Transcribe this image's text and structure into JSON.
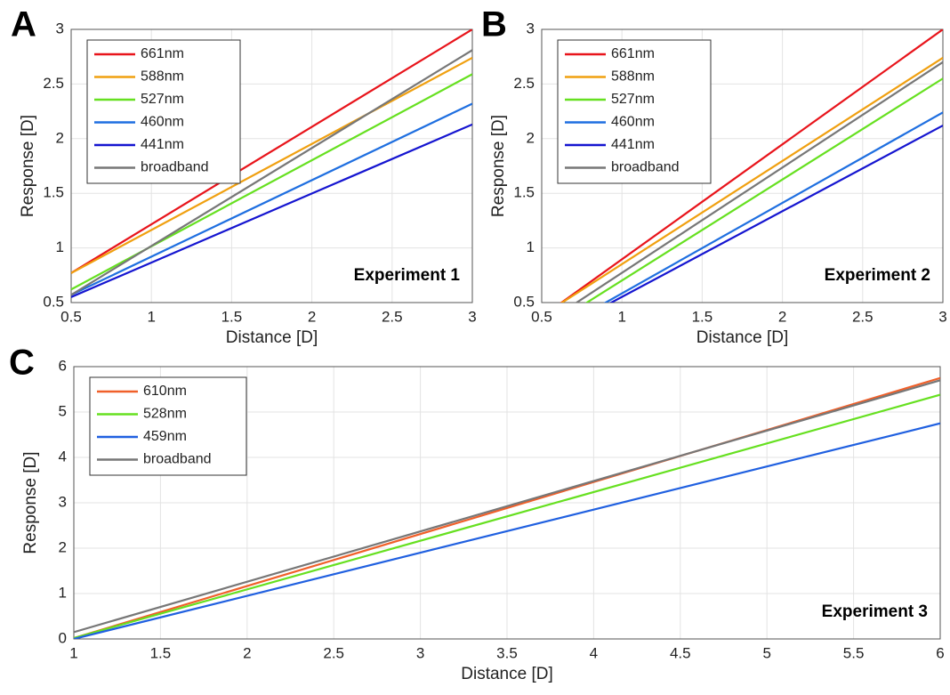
{
  "chart_data": [
    {
      "type": "line",
      "label": "A",
      "annotation": "Experiment 1",
      "x_label": "Distance [D]",
      "y_label": "Response [D]",
      "x": [
        0.5,
        3
      ],
      "xlim": [
        0.5,
        3
      ],
      "ylim": [
        0.5,
        3
      ],
      "xticks": [
        0.5,
        1,
        1.5,
        2,
        2.5,
        3
      ],
      "yticks": [
        0.5,
        1,
        1.5,
        2,
        2.5,
        3
      ],
      "grid": true,
      "legend": "upper left",
      "series": [
        {
          "name": "661nm",
          "color": "#e8141b",
          "values": [
            0.77,
            3.0
          ]
        },
        {
          "name": "588nm",
          "color": "#f0a010",
          "values": [
            0.77,
            2.74
          ]
        },
        {
          "name": "527nm",
          "color": "#66e020",
          "values": [
            0.62,
            2.59
          ]
        },
        {
          "name": "460nm",
          "color": "#1f6fe0",
          "values": [
            0.57,
            2.32
          ]
        },
        {
          "name": "441nm",
          "color": "#1515d0",
          "values": [
            0.55,
            2.13
          ]
        },
        {
          "name": "broadband",
          "color": "#777777",
          "values": [
            0.57,
            2.81
          ]
        }
      ]
    },
    {
      "type": "line",
      "label": "B",
      "annotation": "Experiment 2",
      "x_label": "Distance [D]",
      "y_label": "Response [D]",
      "x": [
        0.5,
        3
      ],
      "xlim": [
        0.5,
        3
      ],
      "ylim": [
        0.5,
        3
      ],
      "xticks": [
        0.5,
        1,
        1.5,
        2,
        2.5,
        3
      ],
      "yticks": [
        0.5,
        1,
        1.5,
        2,
        2.5,
        3
      ],
      "grid": true,
      "legend": "upper left",
      "series": [
        {
          "name": "661nm",
          "color": "#e8141b",
          "values": [
            0.37,
            3.0
          ]
        },
        {
          "name": "588nm",
          "color": "#f0a010",
          "values": [
            0.38,
            2.74
          ]
        },
        {
          "name": "527nm",
          "color": "#66e020",
          "values": [
            0.24,
            2.55
          ]
        },
        {
          "name": "460nm",
          "color": "#1f6fe0",
          "values": [
            0.17,
            2.24
          ]
        },
        {
          "name": "441nm",
          "color": "#1515d0",
          "values": [
            0.16,
            2.12
          ]
        },
        {
          "name": "broadband",
          "color": "#777777",
          "values": [
            0.29,
            2.7
          ]
        }
      ]
    },
    {
      "type": "line",
      "label": "C",
      "annotation": "Experiment 3",
      "x_label": "Distance [D]",
      "y_label": "Response [D]",
      "x": [
        1,
        6
      ],
      "xlim": [
        1,
        6
      ],
      "ylim": [
        0,
        6
      ],
      "xticks": [
        1,
        1.5,
        2,
        2.5,
        3,
        3.5,
        4,
        4.5,
        5,
        5.5,
        6
      ],
      "yticks": [
        0,
        1,
        2,
        3,
        4,
        5,
        6
      ],
      "grid": true,
      "legend": "upper left",
      "series": [
        {
          "name": "610nm",
          "color": "#f0602a",
          "values": [
            0.02,
            5.75
          ]
        },
        {
          "name": "528nm",
          "color": "#66e020",
          "values": [
            0.02,
            5.38
          ]
        },
        {
          "name": "459nm",
          "color": "#2060e0",
          "values": [
            0.0,
            4.75
          ]
        },
        {
          "name": "broadband",
          "color": "#777777",
          "values": [
            0.15,
            5.7
          ]
        }
      ]
    }
  ]
}
